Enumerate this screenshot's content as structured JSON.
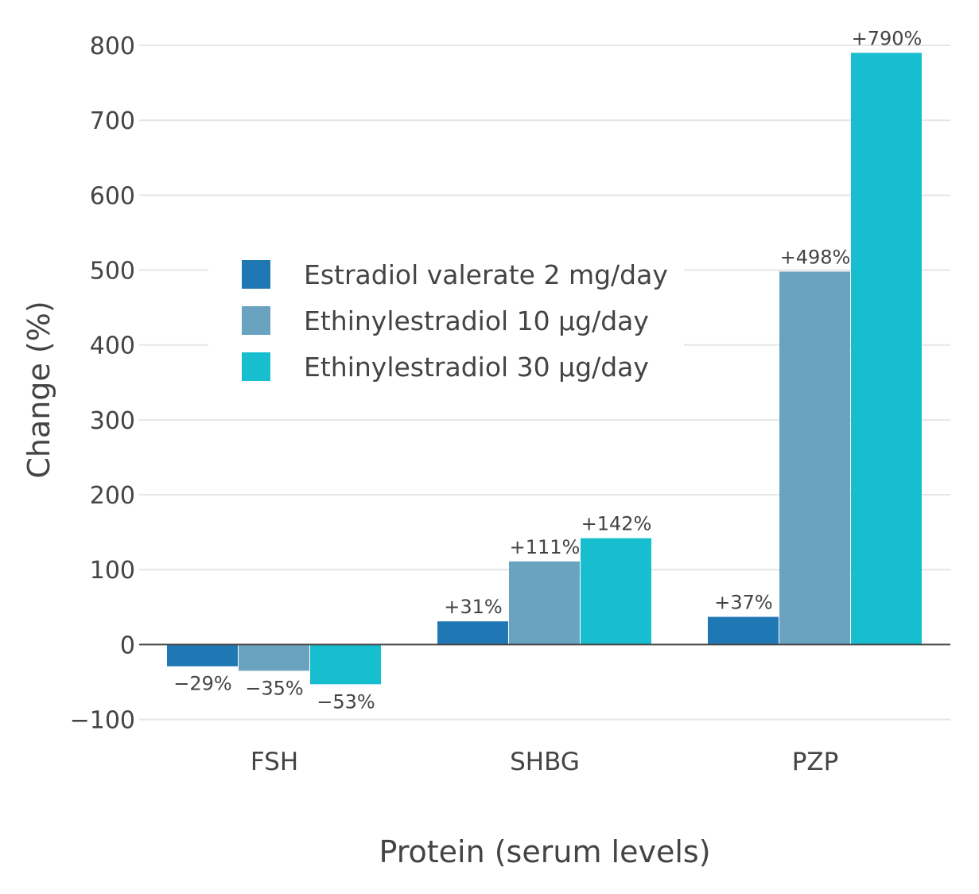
{
  "chart_data": {
    "type": "bar",
    "categories": [
      "FSH",
      "SHBG",
      "PZP"
    ],
    "series": [
      {
        "name": "Estradiol valerate 2 mg/day",
        "color": "#1f77b4",
        "values": [
          -29,
          31,
          37
        ],
        "labels": [
          "−29%",
          "+31%",
          "+37%"
        ]
      },
      {
        "name": "Ethinylestradiol 10 µg/day",
        "color": "#6aa3c0",
        "values": [
          -35,
          111,
          498
        ],
        "labels": [
          "−35%",
          "+111%",
          "+498%"
        ]
      },
      {
        "name": "Ethinylestradiol 30 µg/day",
        "color": "#17becf",
        "values": [
          -53,
          142,
          790
        ],
        "labels": [
          "−53%",
          "+142%",
          "+790%"
        ]
      }
    ],
    "xlabel": "Protein (serum levels)",
    "ylabel": "Change (%)",
    "ylim": [
      -100,
      800
    ],
    "yticks": [
      -100,
      0,
      100,
      200,
      300,
      400,
      500,
      600,
      700,
      800
    ],
    "ytick_labels": [
      "−100",
      "0",
      "100",
      "200",
      "300",
      "400",
      "500",
      "600",
      "700",
      "800"
    ],
    "grid": true,
    "legend_position": "top-left"
  }
}
